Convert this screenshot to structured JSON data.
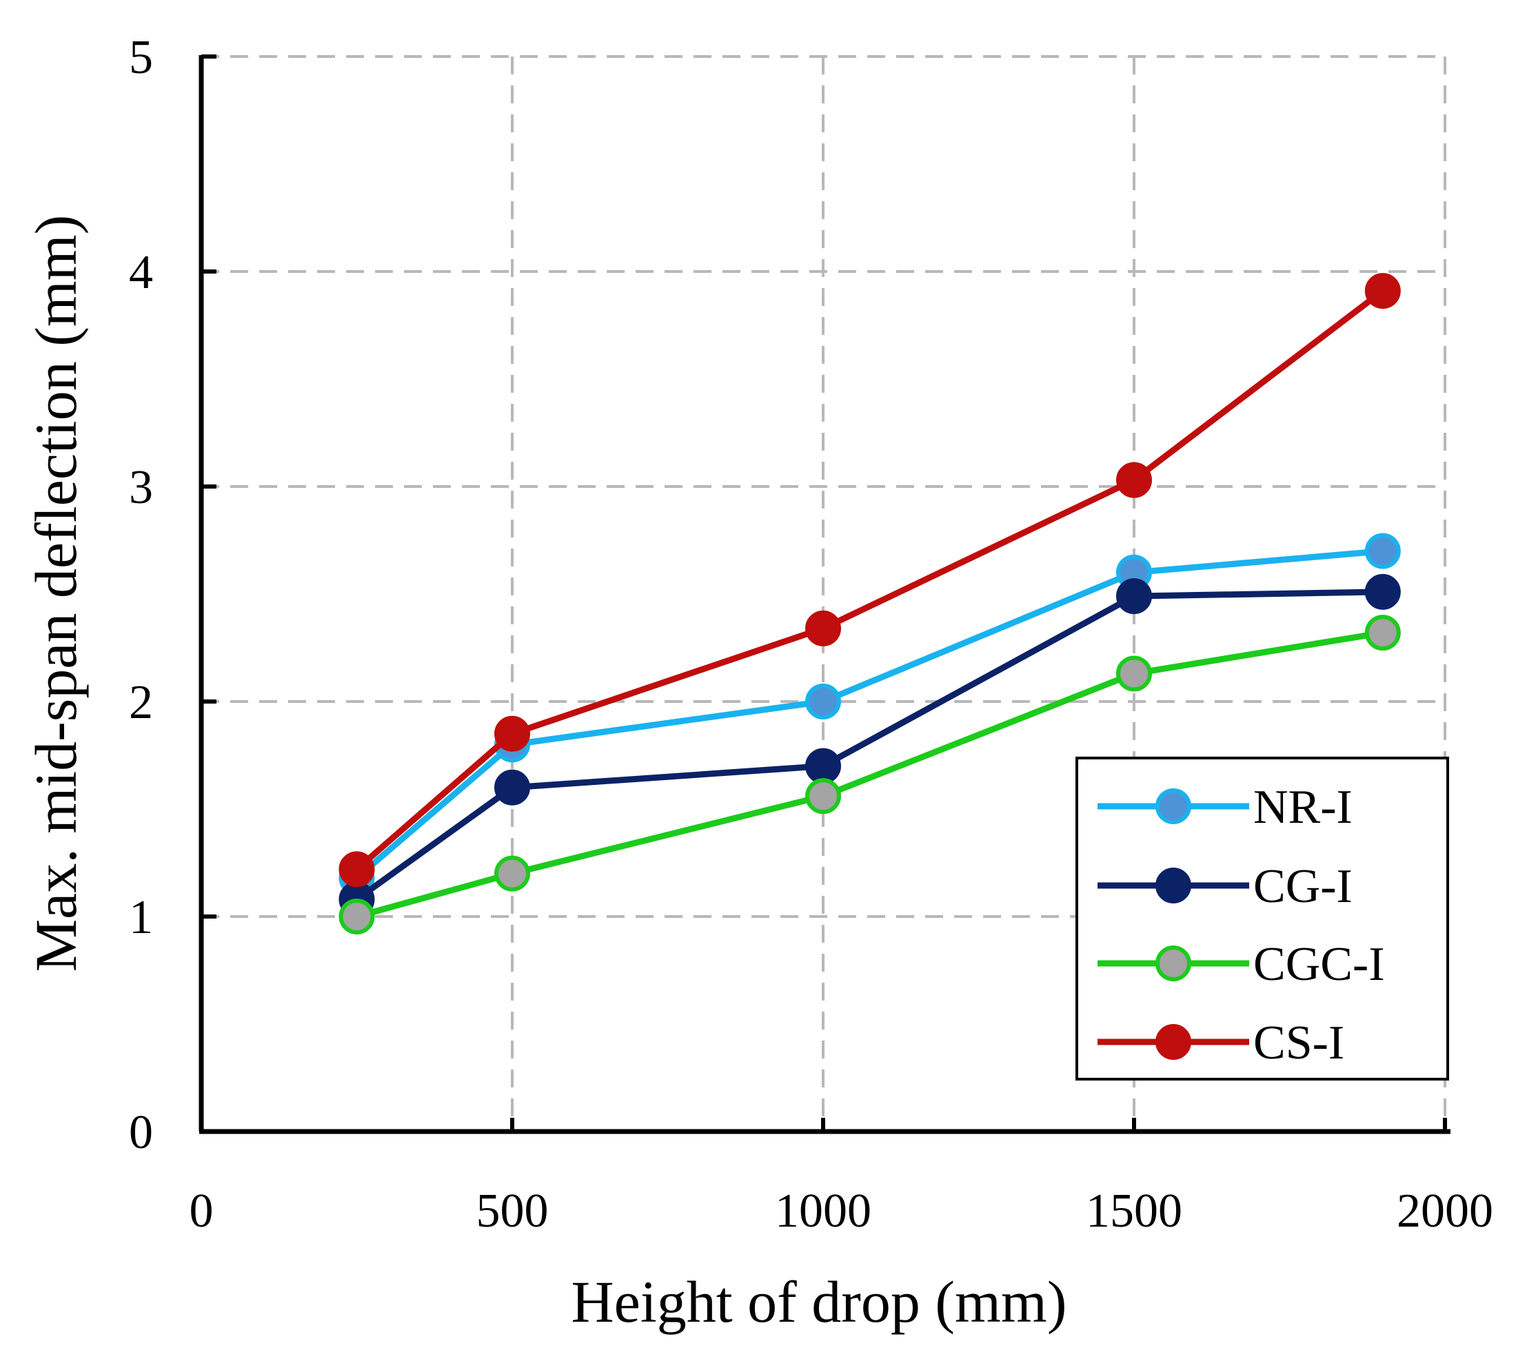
{
  "chart_data": {
    "type": "line",
    "title": "",
    "xlabel": "Height of drop (mm)",
    "ylabel": "Max. mid-span deflection (mm)",
    "xlim": [
      0,
      2000
    ],
    "ylim": [
      0,
      5
    ],
    "xticks": [
      0,
      500,
      1000,
      1500,
      2000
    ],
    "yticks": [
      0,
      1,
      2,
      3,
      4,
      5
    ],
    "xtick_labels": [
      "0",
      "500",
      "1000",
      "1500",
      "2000"
    ],
    "ytick_labels": [
      "0",
      "1",
      "2",
      "3",
      "4",
      "5"
    ],
    "grid": true,
    "legend_position": "bottom-right",
    "x": [
      250,
      500,
      1000,
      1500,
      1900
    ],
    "series": [
      {
        "name": "NR-I",
        "values": [
          1.18,
          1.8,
          2.0,
          2.6,
          2.7
        ],
        "line_color": "#1ab2ee",
        "marker_fill": "#4d94d6",
        "marker_edge": "#1ab2ee"
      },
      {
        "name": "CG-I",
        "values": [
          1.08,
          1.6,
          1.7,
          2.49,
          2.51
        ],
        "line_color": "#0c2266",
        "marker_fill": "#0c2266",
        "marker_edge": "#0c2266"
      },
      {
        "name": "CGC-I",
        "values": [
          1.0,
          1.2,
          1.56,
          2.13,
          2.32
        ],
        "line_color": "#1ccb1c",
        "marker_fill": "#a4a4a4",
        "marker_edge": "#1ccb1c"
      },
      {
        "name": "CS-I",
        "values": [
          1.22,
          1.85,
          2.34,
          3.03,
          3.91
        ],
        "line_color": "#c00d0d",
        "marker_fill": "#c00d0d",
        "marker_edge": "#c00d0d"
      }
    ]
  }
}
